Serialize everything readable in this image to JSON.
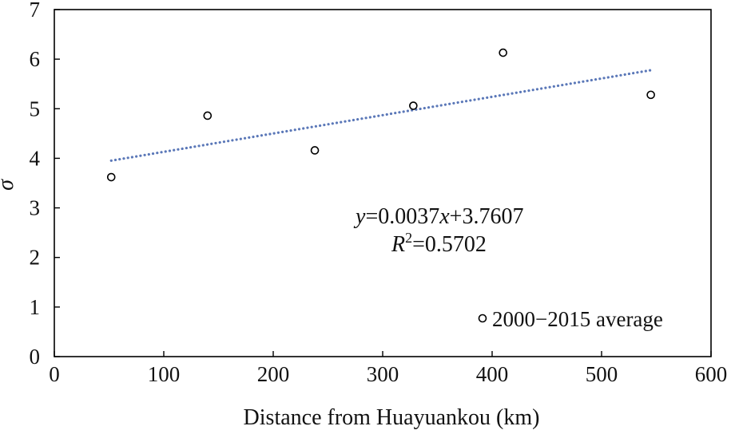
{
  "chart_data": {
    "type": "scatter",
    "xlabel": "Distance from Huayuankou (km)",
    "ylabel": "σ",
    "xlim": [
      0,
      600
    ],
    "ylim": [
      0,
      7
    ],
    "xticks": [
      0,
      100,
      200,
      300,
      400,
      500,
      600
    ],
    "yticks": [
      0,
      1,
      2,
      3,
      4,
      5,
      6,
      7
    ],
    "grid": false,
    "legend_position": "bottom-right",
    "series": [
      {
        "name": "2000−2015 average",
        "marker": "open-circle",
        "points": [
          {
            "x": 52,
            "y": 3.62
          },
          {
            "x": 140,
            "y": 4.86
          },
          {
            "x": 238,
            "y": 4.16
          },
          {
            "x": 328,
            "y": 5.06
          },
          {
            "x": 410,
            "y": 6.13
          },
          {
            "x": 545,
            "y": 5.28
          }
        ]
      }
    ],
    "trendline": {
      "type": "linear",
      "style": "dotted",
      "slope": 0.0037,
      "intercept": 3.7607,
      "x_range": [
        52,
        545
      ],
      "color": "#5b78b8"
    },
    "annotation": {
      "equation_y": "y",
      "equation_rest": "=0.0037",
      "equation_x": "x",
      "equation_tail": "+3.7607",
      "r2_letter": "R",
      "r2_sup": "2",
      "r2_value": "=0.5702"
    }
  }
}
